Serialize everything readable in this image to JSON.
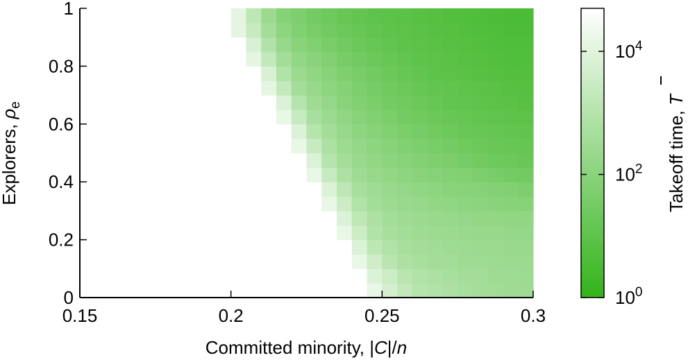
{
  "chart_data": {
    "type": "heatmap",
    "title": "",
    "xlabel": {
      "prefix": "Committed minority, |",
      "italic": "C",
      "middle": "|/",
      "italic2": "n"
    },
    "ylabel": {
      "prefix": "Explorers, ",
      "symbol": "ρ",
      "subscript": "e"
    },
    "colorbar_label": {
      "prefix": "Takeoff time, ",
      "symbol": "T"
    },
    "xlim": [
      0.15,
      0.3
    ],
    "ylim": [
      0,
      1
    ],
    "x_ticks": [
      0.15,
      0.2,
      0.25,
      0.3
    ],
    "x_tick_labels": [
      "0.15",
      "0.2",
      "0.25",
      "0.3"
    ],
    "y_ticks": [
      0,
      0.2,
      0.4,
      0.6,
      0.8,
      1
    ],
    "y_tick_labels": [
      "0",
      "0.2",
      "0.4",
      "0.6",
      "0.8",
      "1"
    ],
    "colorbar": {
      "scale": "log",
      "range": [
        1,
        50000
      ],
      "ticks": [
        {
          "value": 1,
          "base": "10",
          "exp": "0"
        },
        {
          "value": 100,
          "base": "10",
          "exp": "2"
        },
        {
          "value": 10000,
          "base": "10",
          "exp": "4"
        }
      ],
      "color_low": "#33b31a",
      "color_high": "#ffffff"
    },
    "grid": {
      "x_start": 0.2,
      "x_step": 0.005,
      "y_step": 0.05,
      "columns": 20,
      "rows": 20,
      "note_values": "Takeoff time per cell, log10 units; null = no takeoff (blank). Row 0 is rho_e 0-0.05.",
      "log10_values": [
        [
          null,
          null,
          null,
          null,
          null,
          null,
          null,
          null,
          null,
          4.2,
          3.7,
          3.3,
          3.0,
          2.9,
          2.8,
          2.7,
          2.6,
          2.55,
          2.5,
          2.5
        ],
        [
          null,
          null,
          null,
          null,
          null,
          null,
          null,
          null,
          null,
          3.9,
          3.5,
          3.1,
          2.9,
          2.8,
          2.7,
          2.6,
          2.6,
          2.5,
          2.5,
          2.45
        ],
        [
          null,
          null,
          null,
          null,
          null,
          null,
          null,
          null,
          4.2,
          3.6,
          3.1,
          2.8,
          2.7,
          2.6,
          2.6,
          2.5,
          2.5,
          2.45,
          2.4,
          2.4
        ],
        [
          null,
          null,
          null,
          null,
          null,
          null,
          null,
          null,
          3.9,
          3.2,
          2.9,
          2.7,
          2.6,
          2.55,
          2.5,
          2.45,
          2.4,
          2.4,
          2.35,
          2.35
        ],
        [
          null,
          null,
          null,
          null,
          null,
          null,
          null,
          4.2,
          3.5,
          2.9,
          2.7,
          2.6,
          2.5,
          2.45,
          2.4,
          2.35,
          2.3,
          2.3,
          2.25,
          2.25
        ],
        [
          null,
          null,
          null,
          null,
          null,
          null,
          null,
          3.9,
          3.2,
          2.8,
          2.6,
          2.5,
          2.4,
          2.35,
          2.3,
          2.25,
          2.2,
          2.2,
          2.15,
          2.15
        ],
        [
          null,
          null,
          null,
          null,
          null,
          null,
          4.2,
          3.5,
          2.9,
          2.6,
          2.45,
          2.35,
          2.3,
          2.2,
          2.15,
          2.1,
          2.05,
          2.0,
          1.95,
          1.9
        ],
        [
          null,
          null,
          null,
          null,
          null,
          null,
          3.9,
          3.2,
          2.7,
          2.5,
          2.35,
          2.25,
          2.15,
          2.1,
          2.0,
          1.95,
          1.9,
          1.85,
          1.8,
          1.7
        ],
        [
          null,
          null,
          null,
          null,
          null,
          4.2,
          3.4,
          2.8,
          2.5,
          2.3,
          2.2,
          2.1,
          2.0,
          1.9,
          1.85,
          1.8,
          1.7,
          1.6,
          1.5,
          1.45
        ],
        [
          null,
          null,
          null,
          null,
          null,
          3.9,
          3.0,
          2.6,
          2.35,
          2.2,
          2.05,
          1.95,
          1.85,
          1.75,
          1.65,
          1.55,
          1.45,
          1.35,
          1.3,
          1.25
        ],
        [
          null,
          null,
          null,
          null,
          4.2,
          3.4,
          2.8,
          2.45,
          2.25,
          2.1,
          1.95,
          1.8,
          1.7,
          1.6,
          1.5,
          1.4,
          1.3,
          1.25,
          1.2,
          1.15
        ],
        [
          null,
          null,
          null,
          null,
          3.9,
          3.0,
          2.6,
          2.3,
          2.1,
          1.95,
          1.8,
          1.65,
          1.55,
          1.45,
          1.35,
          1.25,
          1.2,
          1.15,
          1.1,
          1.05
        ],
        [
          null,
          null,
          null,
          4.2,
          3.4,
          2.7,
          2.4,
          2.15,
          1.95,
          1.8,
          1.65,
          1.5,
          1.4,
          1.3,
          1.2,
          1.15,
          1.1,
          1.05,
          1.0,
          0.95
        ],
        [
          null,
          null,
          null,
          3.9,
          3.0,
          2.5,
          2.25,
          2.0,
          1.8,
          1.65,
          1.5,
          1.4,
          1.3,
          1.2,
          1.1,
          1.05,
          1.0,
          0.95,
          0.9,
          0.85
        ],
        [
          null,
          null,
          4.1,
          3.3,
          2.6,
          2.3,
          2.1,
          1.9,
          1.7,
          1.55,
          1.4,
          1.3,
          1.2,
          1.1,
          1.05,
          1.0,
          0.95,
          0.9,
          0.85,
          0.8
        ],
        [
          null,
          null,
          3.8,
          2.9,
          2.4,
          2.15,
          1.95,
          1.75,
          1.6,
          1.45,
          1.3,
          1.2,
          1.1,
          1.0,
          0.95,
          0.9,
          0.85,
          0.8,
          0.75,
          0.75
        ],
        [
          null,
          4.1,
          3.3,
          2.6,
          2.2,
          2.0,
          1.8,
          1.6,
          1.45,
          1.3,
          1.2,
          1.1,
          1.0,
          0.95,
          0.9,
          0.85,
          0.8,
          0.75,
          0.7,
          0.7
        ],
        [
          null,
          3.8,
          2.9,
          2.3,
          2.0,
          1.8,
          1.6,
          1.45,
          1.3,
          1.2,
          1.1,
          1.0,
          0.95,
          0.9,
          0.85,
          0.8,
          0.75,
          0.7,
          0.65,
          0.65
        ],
        [
          4.1,
          3.4,
          2.6,
          2.1,
          1.8,
          1.6,
          1.45,
          1.3,
          1.2,
          1.1,
          1.0,
          0.95,
          0.9,
          0.85,
          0.8,
          0.75,
          0.7,
          0.65,
          0.6,
          0.6
        ],
        [
          4.1,
          3.2,
          2.4,
          1.9,
          1.7,
          1.5,
          1.35,
          1.2,
          1.1,
          1.0,
          0.95,
          0.9,
          0.85,
          0.8,
          0.75,
          0.7,
          0.65,
          0.6,
          0.55,
          0.55
        ]
      ]
    }
  }
}
